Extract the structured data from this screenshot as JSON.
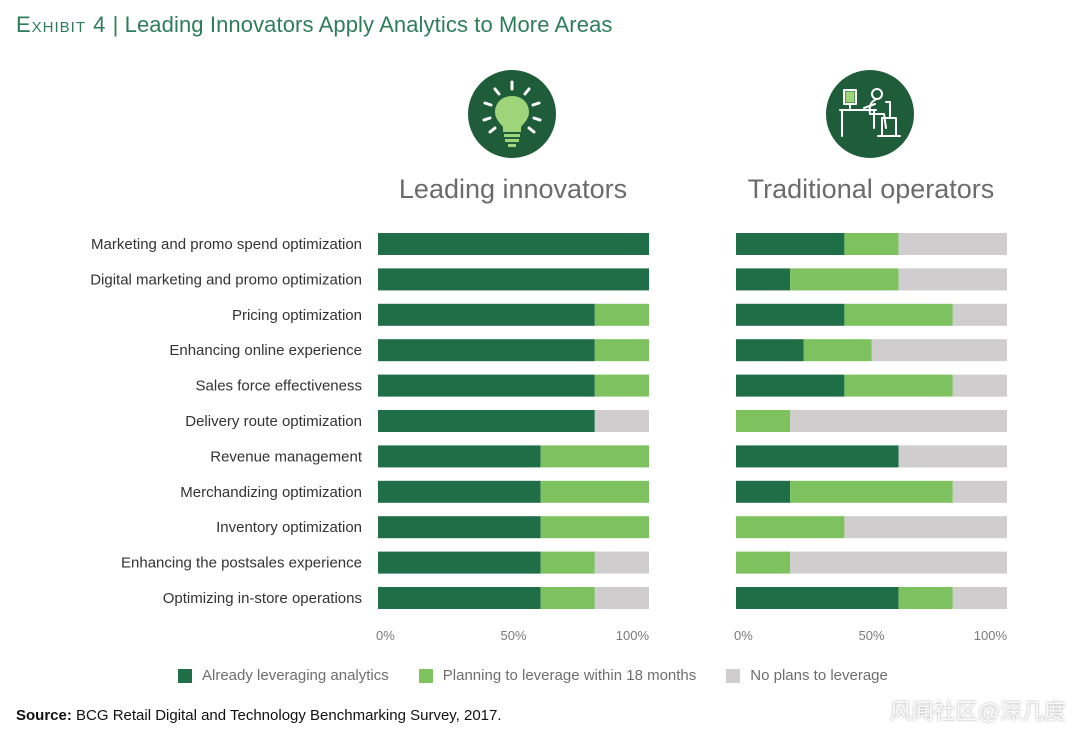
{
  "exhibit": {
    "label": "Exhibit 4",
    "separator": "|",
    "title": "Leading Innovators Apply Analytics to More Areas"
  },
  "colors": {
    "already": "#1f6e48",
    "planning": "#7dc25f",
    "none": "#cfcdcd",
    "title": "#2e7d5a",
    "icon_bg": "#1e5c3a"
  },
  "icons": {
    "left": "lightbulb-icon",
    "right": "office-worker-icon"
  },
  "legend": {
    "already": "Already leveraging analytics",
    "planning": "Planning to leverage within 18 months",
    "none": "No plans to leverage"
  },
  "source": {
    "label": "Source:",
    "text": "BCG Retail Digital and Technology Benchmarking Survey, 2017."
  },
  "watermark": "风闻社区@深几度",
  "chart_data": {
    "type": "bar",
    "orientation": "horizontal",
    "stacked": true,
    "categories": [
      "Marketing and promo spend optimization",
      "Digital marketing and promo optimization",
      "Pricing optimization",
      "Enhancing online experience",
      "Sales force effectiveness",
      "Delivery route optimization",
      "Revenue management",
      "Merchandizing optimization",
      "Inventory optimization",
      "Enhancing the postsales experience",
      "Optimizing in-store operations"
    ],
    "xlim": [
      0,
      100
    ],
    "xticks": [
      "0%",
      "50%",
      "100%"
    ],
    "panels": [
      {
        "title": "Leading innovators",
        "series": [
          {
            "name": "Already leveraging analytics",
            "values": [
              100,
              100,
              80,
              80,
              80,
              80,
              60,
              60,
              60,
              60,
              60
            ]
          },
          {
            "name": "Planning to leverage within 18 months",
            "values": [
              0,
              0,
              20,
              20,
              20,
              0,
              40,
              40,
              40,
              20,
              20
            ]
          },
          {
            "name": "No plans to leverage",
            "values": [
              0,
              0,
              0,
              0,
              0,
              20,
              0,
              0,
              0,
              20,
              20
            ]
          }
        ]
      },
      {
        "title": "Traditional operators",
        "series": [
          {
            "name": "Already leveraging analytics",
            "values": [
              40,
              20,
              40,
              25,
              40,
              0,
              60,
              20,
              0,
              0,
              60
            ]
          },
          {
            "name": "Planning to leverage within 18 months",
            "values": [
              20,
              40,
              40,
              25,
              40,
              20,
              0,
              60,
              40,
              20,
              20
            ]
          },
          {
            "name": "No plans to leverage",
            "values": [
              40,
              40,
              20,
              50,
              20,
              80,
              40,
              20,
              60,
              80,
              20
            ]
          }
        ]
      }
    ]
  }
}
